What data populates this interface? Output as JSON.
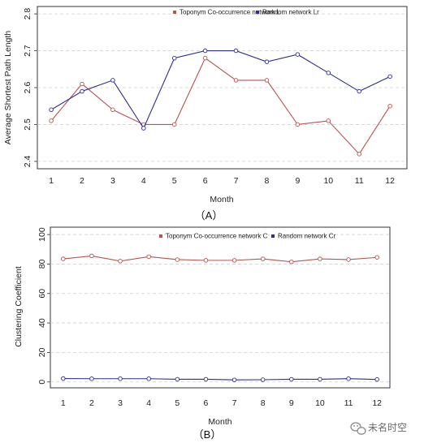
{
  "chart_data": [
    {
      "type": "line",
      "panel_label": "（A）",
      "xlabel": "Month",
      "ylabel": "Average Shortest Path Length",
      "x": [
        1,
        2,
        3,
        4,
        5,
        6,
        7,
        8,
        9,
        10,
        11,
        12
      ],
      "xticks": [
        "1",
        "2",
        "3",
        "4",
        "5",
        "6",
        "7",
        "8",
        "9",
        "10",
        "11",
        "12"
      ],
      "ylim": [
        2.38,
        2.82
      ],
      "yticks": [
        "2.4",
        "2.5",
        "2.6",
        "2.7",
        "2.8"
      ],
      "grid": true,
      "legend_position": "top-right",
      "series": [
        {
          "name": "Toponym Co-occurrence network L",
          "color": "#b85450",
          "values": [
            2.51,
            2.61,
            2.54,
            2.5,
            2.5,
            2.68,
            2.62,
            2.62,
            2.5,
            2.51,
            2.42,
            2.55
          ]
        },
        {
          "name": "Random network Lr",
          "color": "#2e2e8f",
          "values": [
            2.54,
            2.59,
            2.62,
            2.49,
            2.68,
            2.7,
            2.7,
            2.67,
            2.69,
            2.64,
            2.59,
            2.63
          ]
        }
      ]
    },
    {
      "type": "line",
      "panel_label": "（B）",
      "xlabel": "Month",
      "ylabel": "Clustering Coefficient",
      "x": [
        1,
        2,
        3,
        4,
        5,
        6,
        7,
        8,
        9,
        10,
        11,
        12
      ],
      "xticks": [
        "1",
        "2",
        "3",
        "4",
        "5",
        "6",
        "7",
        "8",
        "9",
        "10",
        "11",
        "12"
      ],
      "ylim": [
        -4,
        105
      ],
      "yticks": [
        "0",
        "20",
        "40",
        "60",
        "80",
        "100"
      ],
      "grid": true,
      "legend_position": "top-right",
      "series": [
        {
          "name": "Toponym Co-occurrence network C",
          "color": "#b85450",
          "values": [
            83.5,
            85.5,
            82,
            85,
            83,
            82.5,
            82.5,
            83.5,
            81.5,
            83.5,
            83,
            84.5
          ]
        },
        {
          "name": "Random network Cr",
          "color": "#2e2e8f",
          "values": [
            2.3,
            2.2,
            2.2,
            2.2,
            1.8,
            1.8,
            1.4,
            1.5,
            1.8,
            1.8,
            2.2,
            1.7
          ]
        }
      ]
    }
  ],
  "watermark": {
    "text": "未名时空",
    "icon": "wechat-icon"
  }
}
